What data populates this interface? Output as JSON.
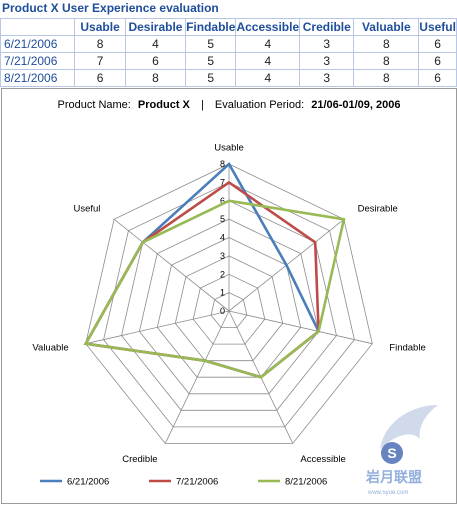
{
  "sheet": {
    "title": "Product X User Experience evaluation"
  },
  "table": {
    "columns": [
      "Usable",
      "Desirable",
      "Findable",
      "Accessible",
      "Credible",
      "Valuable",
      "Useful"
    ],
    "rows": [
      {
        "date": "6/21/2006",
        "values": [
          8,
          4,
          5,
          4,
          3,
          8,
          6
        ]
      },
      {
        "date": "7/21/2006",
        "values": [
          7,
          6,
          5,
          4,
          3,
          8,
          6
        ]
      },
      {
        "date": "8/21/2006",
        "values": [
          6,
          8,
          5,
          4,
          3,
          8,
          6
        ]
      }
    ]
  },
  "chart_data": {
    "type": "radar",
    "title_label": "Product  Name:",
    "title_product": "Product  X",
    "title_separator": "|",
    "title_period_label": "Evaluation  Period:",
    "title_period": "21/06-01/09,  2006",
    "categories": [
      "Usable",
      "Desirable",
      "Findable",
      "Accessible",
      "Credible",
      "Valuable",
      "Useful"
    ],
    "rlim": [
      0,
      8
    ],
    "ticks": [
      "0",
      "1",
      "2",
      "3",
      "4",
      "5",
      "6",
      "7",
      "8"
    ],
    "grid": true,
    "legend_position": "bottom",
    "series": [
      {
        "name": "6/21/2006",
        "color": "#4a7ebb",
        "values": [
          8,
          4,
          5,
          4,
          3,
          8,
          6
        ]
      },
      {
        "name": "7/21/2006",
        "color": "#be4b48",
        "values": [
          7,
          6,
          5,
          4,
          3,
          8,
          6
        ]
      },
      {
        "name": "8/21/2006",
        "color": "#98b954",
        "values": [
          6,
          8,
          5,
          4,
          3,
          8,
          6
        ]
      }
    ]
  },
  "watermark": {
    "text": "岩月联盟",
    "url": "www.5yue.com"
  }
}
